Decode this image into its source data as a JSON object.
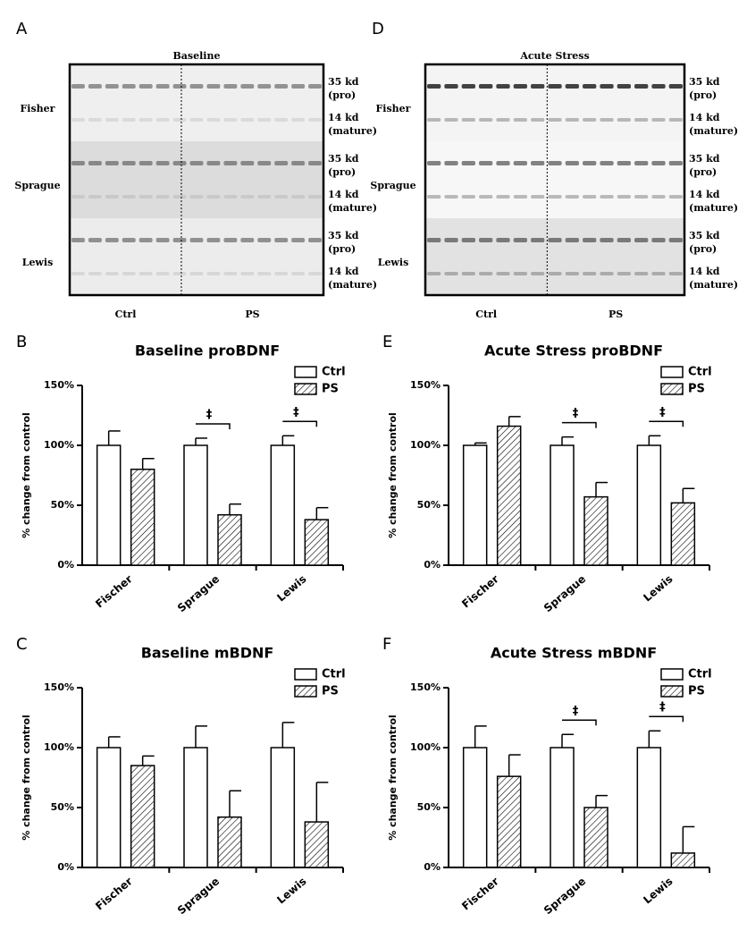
{
  "blots": [
    {
      "letter": "A",
      "title": "Baseline",
      "rows": [
        "Fisher",
        "Sprague",
        "Lewis"
      ],
      "bands": [
        [
          "35 kd",
          "(pro)"
        ],
        [
          "14 kd",
          "(mature)"
        ],
        [
          "35 kd",
          "(pro)"
        ],
        [
          "14 kd",
          "(mature)"
        ],
        [
          "35 kd",
          "(pro)"
        ],
        [
          "14 kd",
          "(mature)"
        ]
      ],
      "groups": [
        "Ctrl",
        "PS"
      ]
    },
    {
      "letter": "D",
      "title": "Acute Stress",
      "rows": [
        "Fisher",
        "Sprague",
        "Lewis"
      ],
      "bands": [
        [
          "35 kd",
          "(pro)"
        ],
        [
          "14 kd",
          "(mature)"
        ],
        [
          "35 kd",
          "(pro)"
        ],
        [
          "14 kd",
          "(mature)"
        ],
        [
          "35 kd",
          "(pro)"
        ],
        [
          "14 kd",
          "(mature)"
        ]
      ],
      "groups": [
        "Ctrl",
        "PS"
      ]
    }
  ],
  "chart_data": [
    {
      "letter": "B",
      "type": "bar",
      "title": "Baseline proBDNF",
      "ylabel": "% change from control",
      "categories": [
        "Fischer",
        "Sprague",
        "Lewis"
      ],
      "series": [
        {
          "name": "Ctrl",
          "color": "#ffffff",
          "values": [
            100,
            100,
            100
          ],
          "errors": [
            12,
            6,
            8
          ]
        },
        {
          "name": "PS",
          "color": "#ffffff",
          "hatch": true,
          "values": [
            80,
            42,
            38
          ],
          "errors": [
            9,
            9,
            10
          ]
        }
      ],
      "significance": [
        null,
        "‡",
        "‡"
      ],
      "ylim": [
        0,
        150
      ],
      "yticks": [
        {
          "value": 0,
          "label": "0%"
        },
        {
          "value": 50,
          "label": "50%"
        },
        {
          "value": 100,
          "label": "100%"
        },
        {
          "value": 150,
          "label": "150%"
        }
      ],
      "legend": "upper right"
    },
    {
      "letter": "C",
      "type": "bar",
      "title": "Baseline mBDNF",
      "ylabel": "% change from control",
      "categories": [
        "Fischer",
        "Sprague",
        "Lewis"
      ],
      "series": [
        {
          "name": "Ctrl",
          "color": "#ffffff",
          "values": [
            100,
            100,
            100
          ],
          "errors": [
            9,
            18,
            21
          ]
        },
        {
          "name": "PS",
          "color": "#ffffff",
          "hatch": true,
          "values": [
            85,
            42,
            38
          ],
          "errors": [
            8,
            22,
            33
          ]
        }
      ],
      "ylim": [
        0,
        150
      ],
      "yticks": [
        {
          "value": 0,
          "label": "0%"
        },
        {
          "value": 50,
          "label": "50%"
        },
        {
          "value": 100,
          "label": "100%"
        },
        {
          "value": 150,
          "label": "150%"
        }
      ],
      "legend": "upper right"
    },
    {
      "letter": "E",
      "type": "bar",
      "title": "Acute Stress proBDNF",
      "ylabel": "% change from control",
      "categories": [
        "Fischer",
        "Sprague",
        "Lewis"
      ],
      "series": [
        {
          "name": "Ctrl",
          "color": "#ffffff",
          "values": [
            100,
            100,
            100
          ],
          "errors": [
            2,
            7,
            8
          ]
        },
        {
          "name": "PS",
          "color": "#ffffff",
          "hatch": true,
          "values": [
            116,
            57,
            52
          ],
          "errors": [
            8,
            12,
            12
          ]
        }
      ],
      "significance": [
        null,
        "‡",
        "‡"
      ],
      "ylim": [
        0,
        150
      ],
      "yticks": [
        {
          "value": 0,
          "label": "0%"
        },
        {
          "value": 50,
          "label": "50%"
        },
        {
          "value": 100,
          "label": "100%"
        },
        {
          "value": 150,
          "label": "150%"
        }
      ],
      "legend": "upper right"
    },
    {
      "letter": "F",
      "type": "bar",
      "title": "Acute Stress mBDNF",
      "ylabel": "% change from control",
      "categories": [
        "Fischer",
        "Sprague",
        "Lewis"
      ],
      "series": [
        {
          "name": "Ctrl",
          "color": "#ffffff",
          "values": [
            100,
            100,
            100
          ],
          "errors": [
            18,
            11,
            14
          ]
        },
        {
          "name": "PS",
          "color": "#ffffff",
          "hatch": true,
          "values": [
            76,
            50,
            12
          ],
          "errors": [
            18,
            10,
            22
          ]
        }
      ],
      "significance": [
        null,
        "‡",
        "‡"
      ],
      "ylim": [
        0,
        150
      ],
      "yticks": [
        {
          "value": 0,
          "label": "0%"
        },
        {
          "value": 50,
          "label": "50%"
        },
        {
          "value": 100,
          "label": "100%"
        },
        {
          "value": 150,
          "label": "150%"
        }
      ],
      "legend": "upper right"
    }
  ]
}
